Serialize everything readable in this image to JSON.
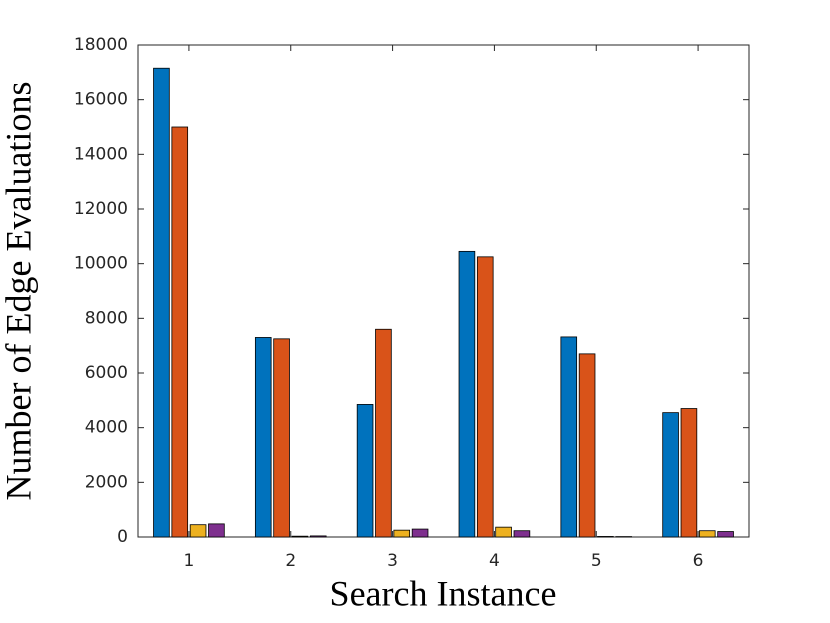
{
  "chart_data": {
    "type": "bar",
    "xlabel": "Search Instance",
    "ylabel": "Number of Edge Evaluations",
    "categories": [
      "1",
      "2",
      "3",
      "4",
      "5",
      "6"
    ],
    "series": [
      {
        "color": "#0072bd",
        "values": [
          17150,
          7300,
          4850,
          10450,
          7320,
          4550
        ]
      },
      {
        "color": "#d95319",
        "values": [
          15000,
          7250,
          7600,
          10250,
          6700,
          4700
        ]
      },
      {
        "color": "#edb120",
        "values": [
          450,
          30,
          250,
          360,
          20,
          230
        ]
      },
      {
        "color": "#7e2f8e",
        "values": [
          480,
          40,
          290,
          230,
          15,
          200
        ]
      }
    ],
    "ylim": [
      0,
      18000
    ],
    "yticks": [
      0,
      2000,
      4000,
      6000,
      8000,
      10000,
      12000,
      14000,
      16000,
      18000
    ]
  }
}
